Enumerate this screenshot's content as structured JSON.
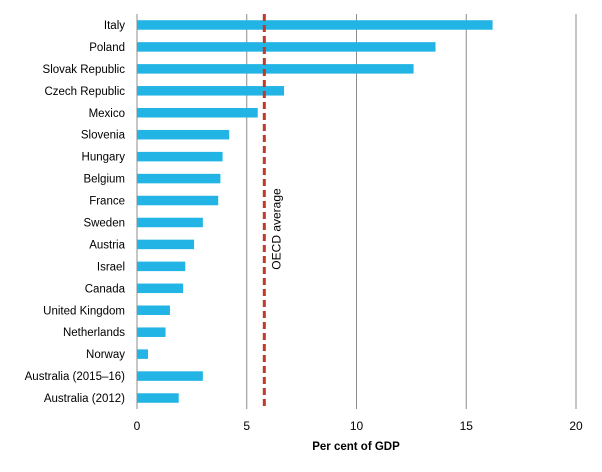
{
  "chart_data": {
    "type": "bar",
    "orientation": "horizontal",
    "categories": [
      "Italy",
      "Poland",
      "Slovak Republic",
      "Czech Republic",
      "Mexico",
      "Slovenia",
      "Hungary",
      "Belgium",
      "France",
      "Sweden",
      "Austria",
      "Israel",
      "Canada",
      "United Kingdom",
      "Netherlands",
      "Norway",
      "Australia (2015–16)",
      "Australia (2012)"
    ],
    "values": [
      16.2,
      13.6,
      12.6,
      6.7,
      5.5,
      4.2,
      3.9,
      3.8,
      3.7,
      3.0,
      2.6,
      2.2,
      2.1,
      1.5,
      1.3,
      0.5,
      3.0,
      1.9
    ],
    "xlabel": "Per cent of GDP",
    "ylabel": "",
    "xlim": [
      0,
      20
    ],
    "xticks": [
      "0",
      "5",
      "10",
      "15",
      "20"
    ],
    "grid": "vertical",
    "reference_line": {
      "label": "OECD average",
      "value": 5.8,
      "style": "dashed"
    }
  },
  "colors": {
    "bar": "#21B4E5",
    "reference": "#C0392B",
    "grid": "#8C8C8C"
  }
}
